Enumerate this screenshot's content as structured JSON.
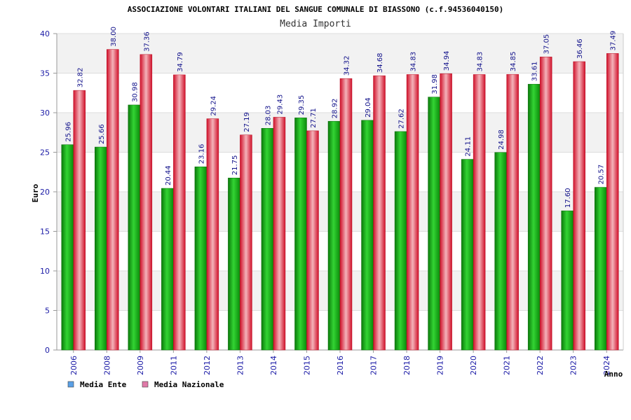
{
  "chart_data": {
    "type": "bar",
    "title": "ASSOCIAZIONE VOLONTARI ITALIANI DEL SANGUE COMUNALE DI BIASSONO (c.f.94536040150)",
    "subtitle": "Media Importi",
    "xlabel": "Anno",
    "ylabel": "Euro",
    "ylim": [
      0,
      40
    ],
    "yticks": [
      0,
      5,
      10,
      15,
      20,
      25,
      30,
      35,
      40
    ],
    "grid": true,
    "legend_position": "bottom-left",
    "categories": [
      "2006",
      "2008",
      "2009",
      "2011",
      "2012",
      "2013",
      "2014",
      "2015",
      "2016",
      "2017",
      "2018",
      "2019",
      "2020",
      "2021",
      "2022",
      "2023",
      "2024"
    ],
    "series": [
      {
        "name": "Media Ente",
        "legend_color": "#5aa0e6",
        "color": "#1cb01c",
        "values": [
          25.96,
          25.66,
          30.98,
          20.44,
          23.16,
          21.75,
          28.03,
          29.35,
          28.92,
          29.04,
          27.62,
          31.98,
          24.11,
          24.98,
          33.61,
          17.6,
          20.57
        ],
        "labels": [
          "25.96",
          "25.66",
          "30.98",
          "20.44",
          "23.16",
          "21.75",
          "28.03",
          "29.35",
          "28.92",
          "29.04",
          "27.62",
          "31.98",
          "24.11",
          "24.98",
          "33.61",
          "17.60",
          "20.57"
        ]
      },
      {
        "name": "Media Nazionale",
        "legend_color": "#e07aa8",
        "color": "#e8283c",
        "values": [
          32.82,
          38.0,
          37.36,
          34.79,
          29.24,
          27.19,
          29.43,
          27.71,
          34.32,
          34.68,
          34.83,
          34.94,
          34.83,
          34.85,
          37.05,
          36.46,
          37.49
        ],
        "labels": [
          "32.82",
          "38.00",
          "37.36",
          "34.79",
          "29.24",
          "27.19",
          "29.43",
          "27.71",
          "34.32",
          "34.68",
          "34.83",
          "34.94",
          "34.83",
          "34.85",
          "37.05",
          "36.46",
          "37.49"
        ]
      }
    ]
  }
}
